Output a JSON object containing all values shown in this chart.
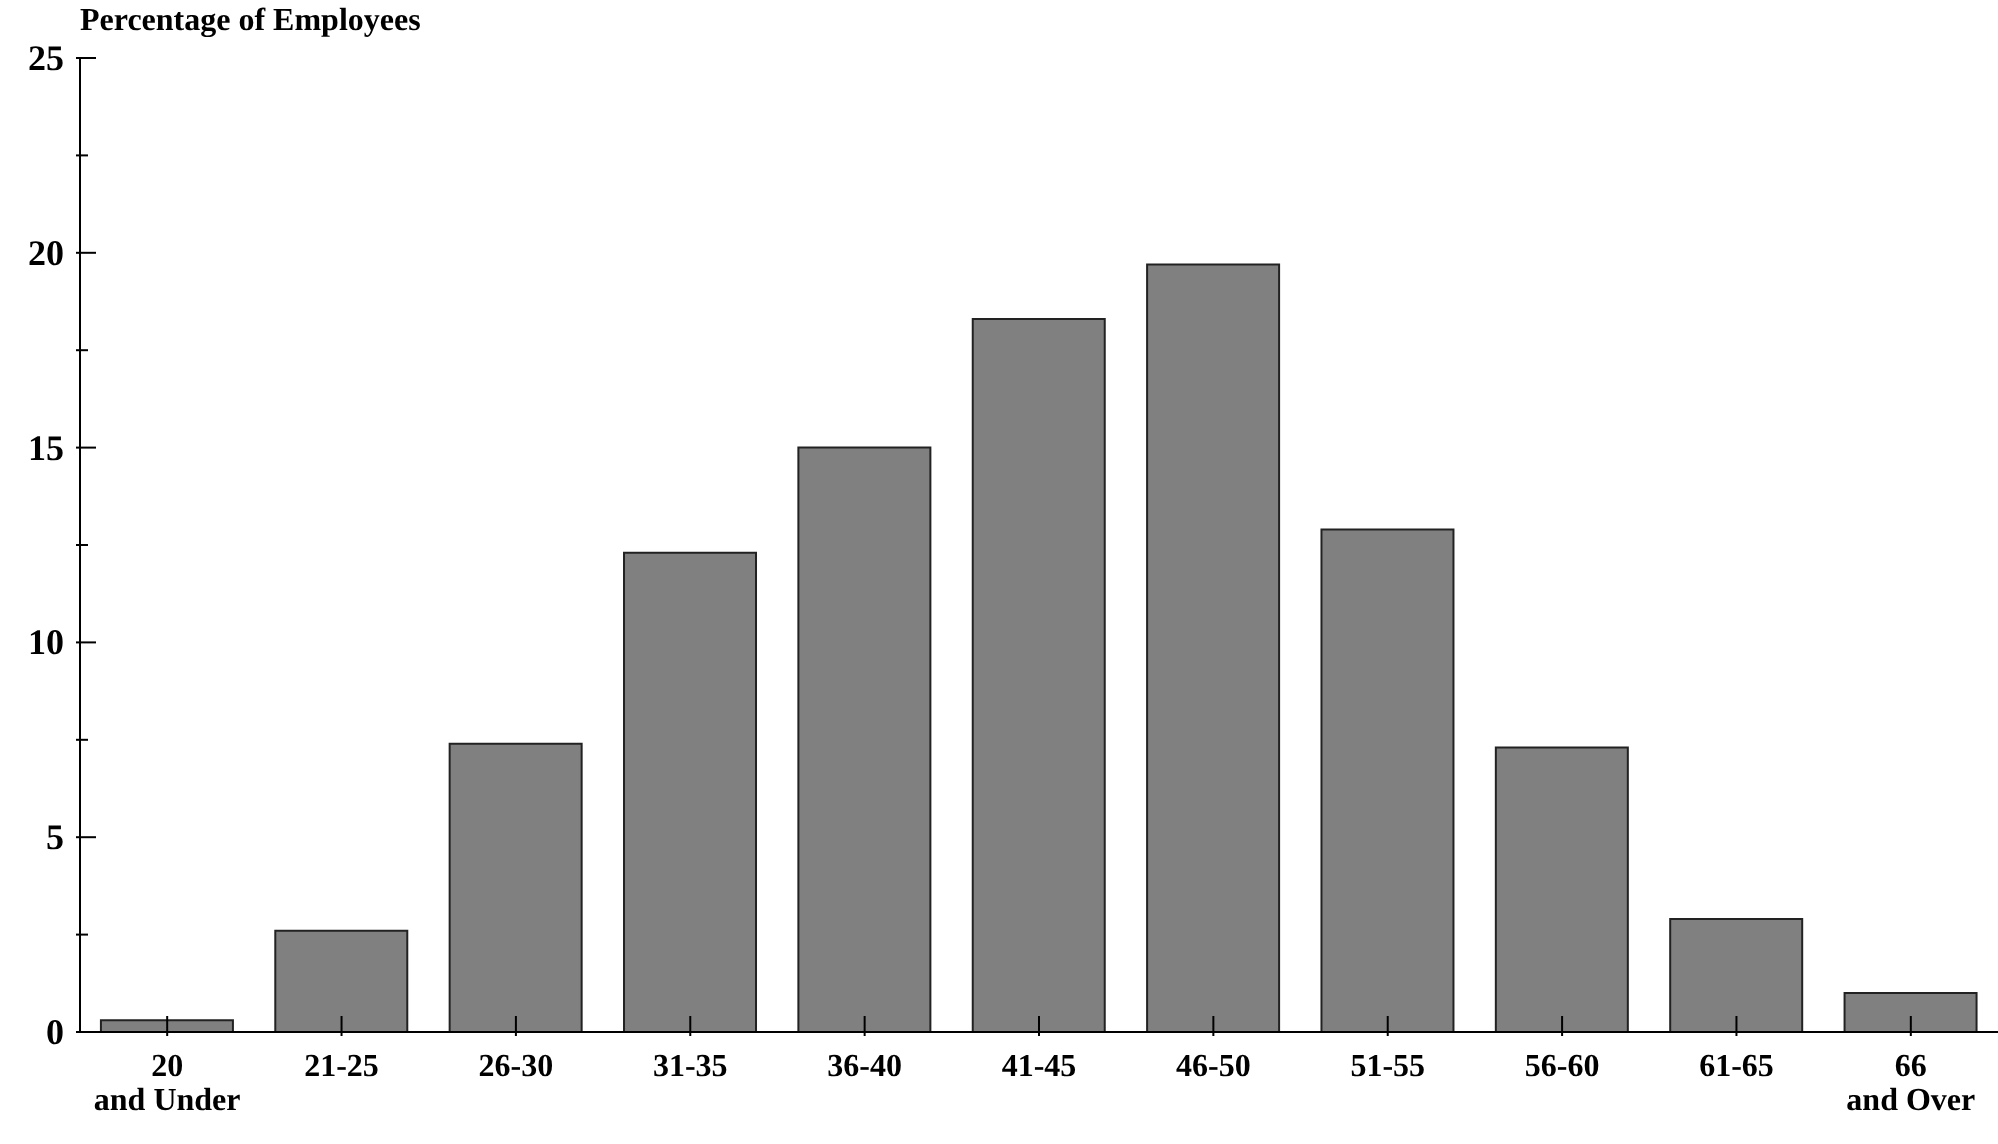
{
  "chart_data": {
    "type": "bar",
    "ylabel": "Percentage of Employees",
    "categories": [
      "20\nand Under",
      "21-25",
      "26-30",
      "31-35",
      "36-40",
      "41-45",
      "46-50",
      "51-55",
      "56-60",
      "61-65",
      "66\nand Over"
    ],
    "values": [
      0.3,
      2.6,
      7.4,
      12.3,
      15.0,
      18.3,
      19.7,
      12.9,
      7.3,
      2.9,
      1.0
    ],
    "color": "#808080",
    "ylim": [
      0,
      25
    ],
    "yticks": [
      0,
      {
        "value": 2.5,
        "label": null
      },
      5,
      {
        "value": 7.5,
        "label": null
      },
      10,
      {
        "value": 12.5,
        "label": null
      },
      15,
      {
        "value": 17.5,
        "label": null
      },
      20,
      {
        "value": 22.5,
        "label": null
      },
      25
    ],
    "grid": false,
    "legend": false
  }
}
